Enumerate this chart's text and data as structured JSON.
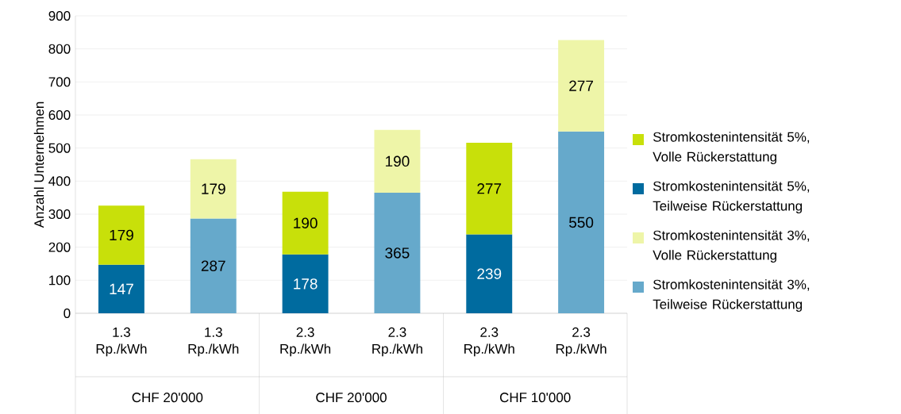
{
  "chart_data": {
    "type": "bar",
    "stacked": true,
    "ylabel": "Anzahl Unternehmen",
    "categories": [
      "1.3 Rp./kWh",
      "1.3 Rp./kWh",
      "2.3 Rp./kWh",
      "2.3 Rp./kWh",
      "2.3 Rp./kWh",
      "2.3 Rp./kWh"
    ],
    "annotations": [
      "CHF 20'000",
      "CHF 20'000",
      "CHF 10'000"
    ],
    "series": [
      {
        "name": "Stromkostenintensität 3%, Teilweise Rückerstattung",
        "color": "#66a9cb",
        "values": [
          null,
          287,
          null,
          365,
          null,
          550
        ]
      },
      {
        "name": "Stromkostenintensität 3%, Volle Rückerstattung",
        "color": "#eef5a8",
        "values": [
          null,
          179,
          null,
          190,
          null,
          277
        ]
      },
      {
        "name": "Stromkostenintensität 5%, Teilweise Rückerstattung",
        "color": "#006b9f",
        "values": [
          147,
          null,
          178,
          null,
          239,
          null
        ]
      },
      {
        "name": "Stromkostenintensität 5%, Volle Rückerstattung",
        "color": "#c8e00a",
        "values": [
          179,
          null,
          190,
          null,
          277,
          null
        ]
      }
    ],
    "ylim": [
      0,
      900
    ],
    "yticks": [
      0,
      100,
      200,
      300,
      400,
      500,
      600,
      700,
      800,
      900
    ],
    "grid": "y",
    "legend": "right",
    "data_labels": true
  }
}
